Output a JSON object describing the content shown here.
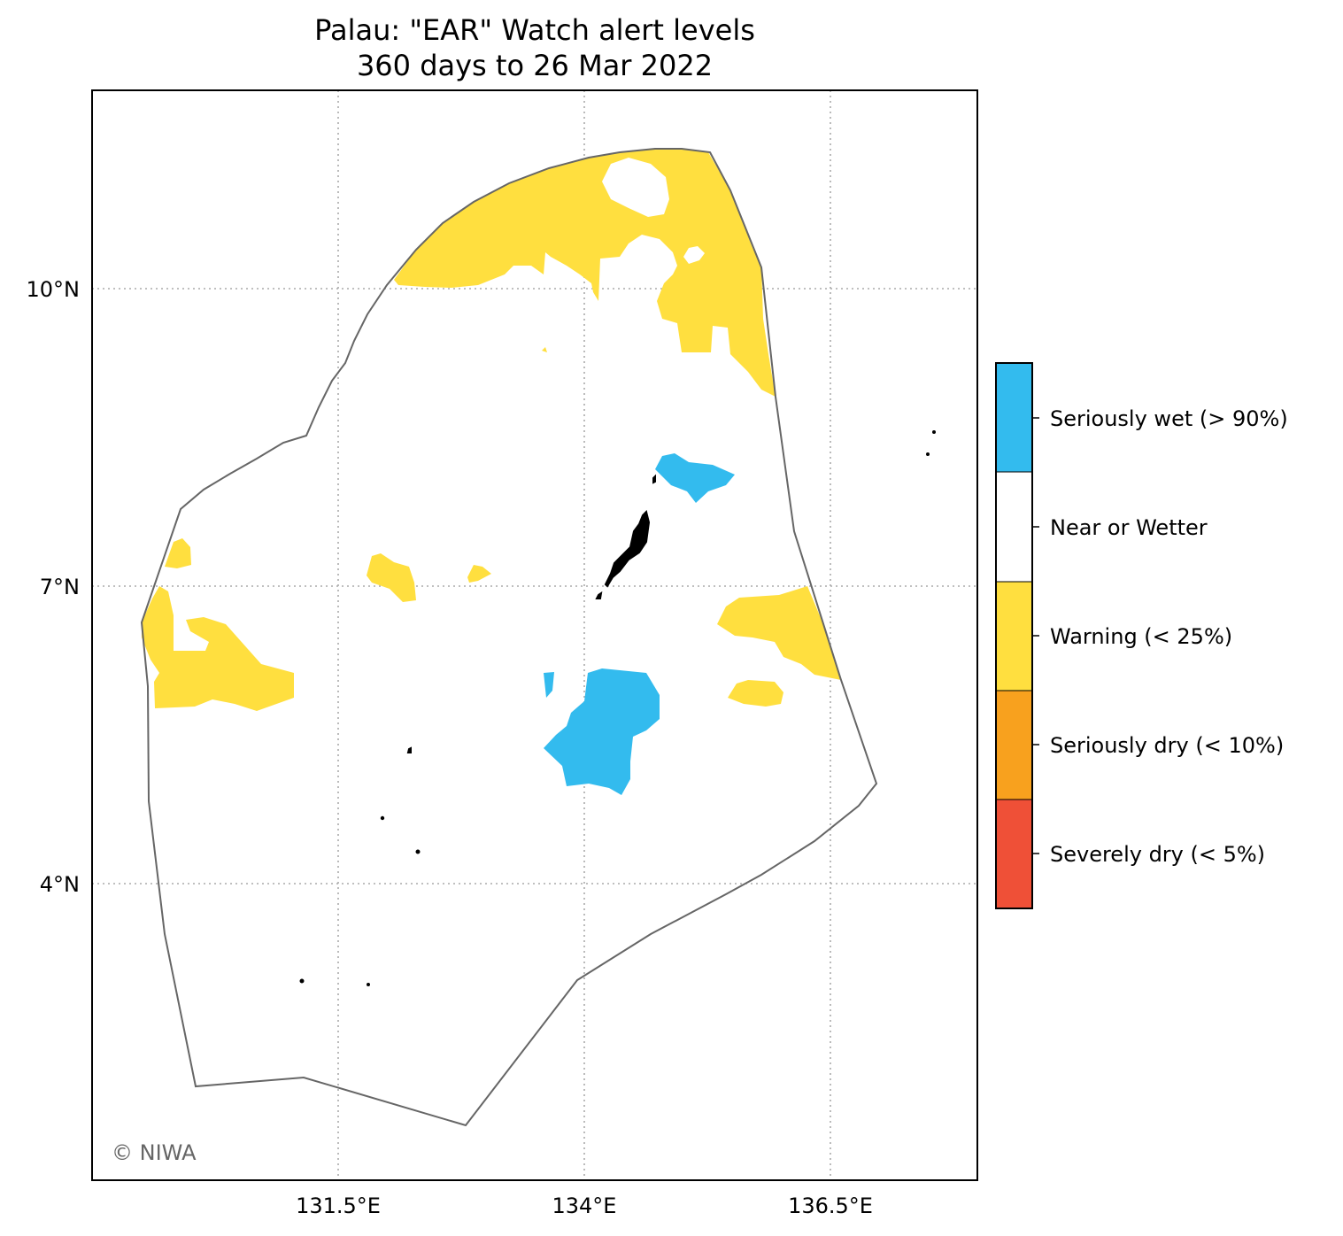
{
  "title": {
    "line1": "Palau: \"EAR\" Watch alert levels",
    "line2": "360 days to 26 Mar 2022"
  },
  "axes": {
    "x_ticks": [
      "131.5°E",
      "134°E",
      "136.5°E"
    ],
    "y_ticks": [
      "10°N",
      "7°N",
      "4°N"
    ],
    "gridlines": true
  },
  "credit": "© NIWA",
  "legend": {
    "items": [
      {
        "label": "Seriously wet (> 90%)",
        "color": "#33BBEE"
      },
      {
        "label": "Near or Wetter",
        "color": "#FFFFFF"
      },
      {
        "label": "Warning (< 25%)",
        "color": "#FFDF3F"
      },
      {
        "label": "Seriously dry (< 10%)",
        "color": "#F8A11E"
      },
      {
        "label": "Severely dry (< 5%)",
        "color": "#EF5037"
      }
    ]
  },
  "colors": {
    "boundary": "#666666",
    "land": "#000000",
    "grid": "#aaaaaa"
  }
}
